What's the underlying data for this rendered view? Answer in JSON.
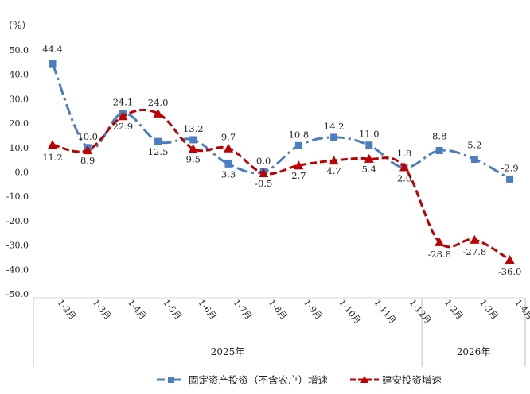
{
  "chart_data": {
    "type": "line",
    "unit_label": "（%）",
    "categories": [
      "1-2月",
      "1-3月",
      "1-4月",
      "1-5月",
      "1-6月",
      "1-7月",
      "1-8月",
      "1-9月",
      "1-10月",
      "1-11月",
      "1-12月",
      "1-2月",
      "1-3月",
      "1-4月"
    ],
    "year_groups": [
      {
        "label": "2025年",
        "start": 0,
        "end": 10
      },
      {
        "label": "2026年",
        "start": 11,
        "end": 13
      }
    ],
    "ylim": [
      -50,
      50
    ],
    "yticks": [
      50,
      40,
      30,
      20,
      10,
      0,
      -10,
      -20,
      -30,
      -40,
      -50
    ],
    "ytick_labels": [
      "50.0",
      "40.0",
      "30.0",
      "20.0",
      "10.0",
      "0.0",
      "-10.0",
      "-20.0",
      "-30.0",
      "-40.0",
      "-50.0"
    ],
    "legend_position": "bottom",
    "series": [
      {
        "name": "固定资产投资（不含农户）增速",
        "color": "#4A7EC0",
        "line_style": "dash-dot",
        "marker": "square",
        "values": [
          44.4,
          10.0,
          24.1,
          12.5,
          13.2,
          3.3,
          0.0,
          10.8,
          14.2,
          11.0,
          1.8,
          8.8,
          5.2,
          -2.9
        ],
        "labels": [
          "44.4",
          "10.0",
          "24.1",
          "12.5",
          "13.2",
          "3.3",
          "0.0",
          "10.8",
          "14.2",
          "11.0",
          "1.8",
          "8.8",
          "5.2",
          "-2.9"
        ]
      },
      {
        "name": "建安投资增速",
        "color": "#C00000",
        "line_style": "dashed",
        "marker": "triangle",
        "values": [
          11.2,
          8.9,
          22.9,
          24.0,
          9.5,
          9.7,
          -0.5,
          2.7,
          4.7,
          5.4,
          2.0,
          -28.8,
          -27.8,
          -36.0
        ],
        "labels": [
          "11.2",
          "8.9",
          "22.9",
          "24.0",
          "9.5",
          "9.7",
          "-0.5",
          "2.7",
          "4.7",
          "5.4",
          "2.0",
          "-28.8",
          "-27.8",
          "-36.0"
        ]
      }
    ]
  }
}
